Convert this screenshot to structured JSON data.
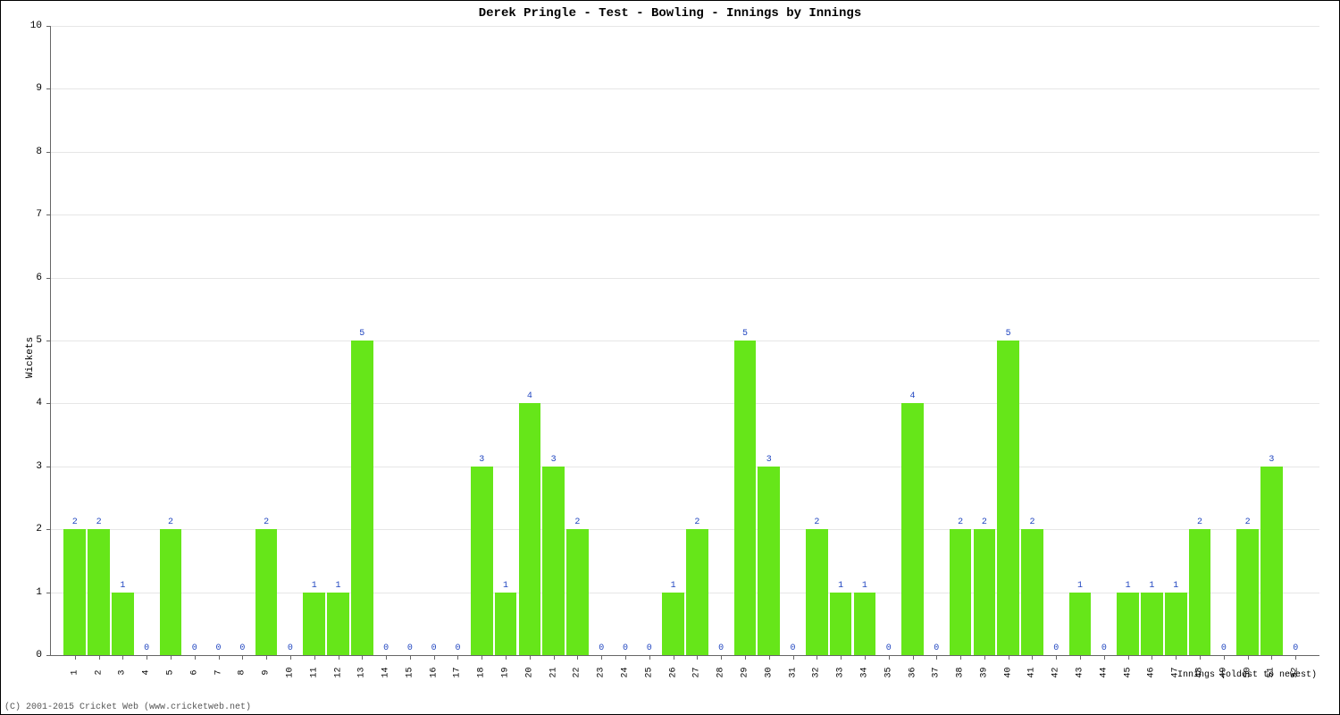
{
  "chart": {
    "type": "bar",
    "title": "Derek Pringle - Test - Bowling - Innings by Innings",
    "title_fontsize": 14,
    "y_axis_label": "Wickets",
    "x_axis_label": "Innings (oldest to newest)",
    "copyright": "(C) 2001-2015 Cricket Web (www.cricketweb.net)",
    "background_color": "#ffffff",
    "grid_color": "#e6e6e6",
    "axis_color": "#666666",
    "bar_color": "#66e619",
    "label_color": "#2045c0",
    "tick_font_size": 11,
    "bar_label_font_size": 10,
    "ylim": [
      0,
      10
    ],
    "ytick_step": 1,
    "bar_width_ratio": 0.92,
    "values": [
      2,
      2,
      1,
      0,
      2,
      0,
      0,
      0,
      2,
      0,
      1,
      1,
      5,
      0,
      0,
      0,
      0,
      3,
      1,
      4,
      3,
      2,
      0,
      0,
      0,
      1,
      2,
      0,
      5,
      3,
      0,
      2,
      1,
      1,
      0,
      4,
      0,
      2,
      2,
      5,
      2,
      0,
      1,
      0,
      1,
      1,
      1,
      2,
      0,
      2,
      3,
      0
    ],
    "categories": [
      1,
      2,
      3,
      4,
      5,
      6,
      7,
      8,
      9,
      10,
      11,
      12,
      13,
      14,
      15,
      16,
      17,
      18,
      19,
      20,
      21,
      22,
      23,
      24,
      25,
      26,
      27,
      28,
      29,
      30,
      31,
      32,
      33,
      34,
      35,
      36,
      37,
      38,
      39,
      40,
      41,
      42,
      43,
      44,
      45,
      46,
      47,
      48,
      49,
      50,
      51,
      52
    ]
  }
}
